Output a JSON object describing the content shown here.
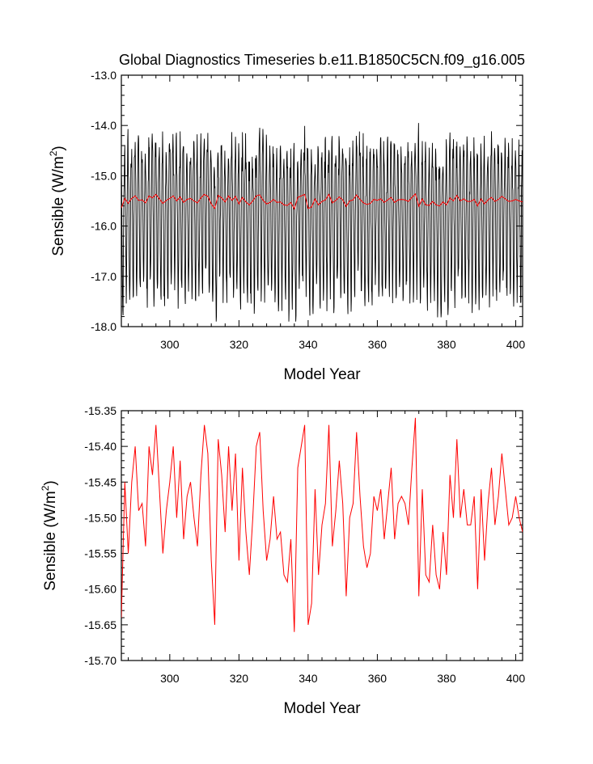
{
  "title": "Global Diagnostics Timeseries b.e11.B1850C5CN.f09_g16.005",
  "colors": {
    "monthly": "#000000",
    "annual": "#ff0000",
    "frame": "#000000"
  },
  "chart_data": [
    {
      "type": "line",
      "xlabel": "Model Year",
      "ylabel_main": "Sensible (W/m",
      "ylabel_sup": "2",
      "ylabel_close": ")",
      "xlim": [
        286,
        402
      ],
      "ylim": [
        -18.0,
        -13.0
      ],
      "x_ticks": [
        300,
        320,
        340,
        360,
        380,
        400
      ],
      "x_tick_labels": [
        "300",
        "320",
        "340",
        "360",
        "380",
        "400"
      ],
      "y_ticks": [
        -13.0,
        -14.0,
        -15.0,
        -16.0,
        -17.0,
        -18.0
      ],
      "y_tick_labels": [
        "-13.0",
        "-14.0",
        "-15.0",
        "-16.0",
        "-17.0",
        "-18.0"
      ],
      "series": [
        {
          "kind": "monthly",
          "color": "#000000",
          "x_start": 286,
          "seasonal_cycle": [
            -14.6,
            -14.9,
            -15.5,
            -16.3,
            -17.0,
            -17.4,
            -17.2,
            -16.4,
            -15.6,
            -15.0,
            -14.7,
            -14.5
          ]
        },
        {
          "kind": "annual",
          "color": "#ff0000",
          "x": [
            286,
            287,
            288,
            289,
            290,
            291,
            292,
            293,
            294,
            295,
            296,
            297,
            298,
            299,
            300,
            301,
            302,
            303,
            304,
            305,
            306,
            307,
            308,
            309,
            310,
            311,
            312,
            313,
            314,
            315,
            316,
            317,
            318,
            319,
            320,
            321,
            322,
            323,
            324,
            325,
            326,
            327,
            328,
            329,
            330,
            331,
            332,
            333,
            334,
            335,
            336,
            337,
            338,
            339,
            340,
            341,
            342,
            343,
            344,
            345,
            346,
            347,
            348,
            349,
            350,
            351,
            352,
            353,
            354,
            355,
            356,
            357,
            358,
            359,
            360,
            361,
            362,
            363,
            364,
            365,
            366,
            367,
            368,
            369,
            370,
            371,
            372,
            373,
            374,
            375,
            376,
            377,
            378,
            379,
            380,
            381,
            382,
            383,
            384,
            385,
            386,
            387,
            388,
            389,
            390,
            391,
            392,
            393,
            394,
            395,
            396,
            397,
            398,
            399,
            400,
            401,
            402
          ],
          "values": [
            -15.64,
            -15.45,
            -15.55,
            -15.45,
            -15.4,
            -15.49,
            -15.48,
            -15.54,
            -15.4,
            -15.44,
            -15.37,
            -15.46,
            -15.55,
            -15.49,
            -15.45,
            -15.4,
            -15.5,
            -15.42,
            -15.53,
            -15.47,
            -15.45,
            -15.5,
            -15.54,
            -15.44,
            -15.37,
            -15.41,
            -15.56,
            -15.65,
            -15.39,
            -15.44,
            -15.52,
            -15.4,
            -15.49,
            -15.41,
            -15.56,
            -15.43,
            -15.52,
            -15.58,
            -15.5,
            -15.4,
            -15.38,
            -15.49,
            -15.56,
            -15.53,
            -15.47,
            -15.53,
            -15.52,
            -15.58,
            -15.59,
            -15.53,
            -15.66,
            -15.43,
            -15.4,
            -15.37,
            -15.65,
            -15.62,
            -15.46,
            -15.58,
            -15.51,
            -15.48,
            -15.37,
            -15.54,
            -15.49,
            -15.42,
            -15.48,
            -15.61,
            -15.5,
            -15.48,
            -15.38,
            -15.47,
            -15.54,
            -15.57,
            -15.55,
            -15.47,
            -15.49,
            -15.46,
            -15.53,
            -15.48,
            -15.43,
            -15.53,
            -15.48,
            -15.47,
            -15.48,
            -15.51,
            -15.43,
            -15.36,
            -15.61,
            -15.46,
            -15.58,
            -15.59,
            -15.51,
            -15.58,
            -15.6,
            -15.52,
            -15.58,
            -15.44,
            -15.5,
            -15.39,
            -15.5,
            -15.46,
            -15.51,
            -15.51,
            -15.47,
            -15.6,
            -15.46,
            -15.56,
            -15.48,
            -15.43,
            -15.51,
            -15.47,
            -15.41,
            -15.46,
            -15.51,
            -15.5,
            -15.47,
            -15.5,
            -15.52
          ]
        }
      ]
    },
    {
      "type": "line",
      "xlabel": "Model Year",
      "ylabel_main": "Sensible (W/m",
      "ylabel_sup": "2",
      "ylabel_close": ")",
      "xlim": [
        286,
        402
      ],
      "ylim": [
        -15.7,
        -15.35
      ],
      "x_ticks": [
        300,
        320,
        340,
        360,
        380,
        400
      ],
      "x_tick_labels": [
        "300",
        "320",
        "340",
        "360",
        "380",
        "400"
      ],
      "y_ticks": [
        -15.35,
        -15.4,
        -15.45,
        -15.5,
        -15.55,
        -15.6,
        -15.65,
        -15.7
      ],
      "y_tick_labels": [
        "-15.35",
        "-15.40",
        "-15.45",
        "-15.50",
        "-15.55",
        "-15.60",
        "-15.65",
        "-15.70"
      ],
      "series": [
        {
          "kind": "annual",
          "color": "#ff0000",
          "use_series_from_panel": 0
        }
      ]
    }
  ]
}
